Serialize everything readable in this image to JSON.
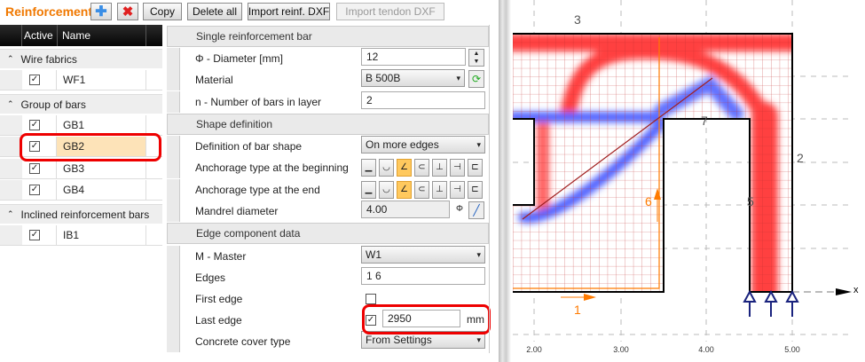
{
  "toolbar": {
    "title": "Reinforcement",
    "add_icon": "plus-icon",
    "delete_icon": "x-icon",
    "copy": "Copy",
    "delete_all": "Delete all",
    "import_reinf": "Import reinf. DXF",
    "import_tendon": "Import tendon DXF"
  },
  "list": {
    "col_active": "Active",
    "col_name": "Name",
    "groups": [
      {
        "label": "Wire fabrics",
        "items": [
          {
            "name": "WF1",
            "active": true
          }
        ]
      },
      {
        "label": "Group of bars",
        "items": [
          {
            "name": "GB1",
            "active": true
          },
          {
            "name": "GB2",
            "active": true,
            "selected": true
          },
          {
            "name": "GB3",
            "active": true
          },
          {
            "name": "GB4",
            "active": true
          }
        ]
      },
      {
        "label": "Inclined reinforcement bars",
        "items": [
          {
            "name": "IB1",
            "active": true
          }
        ]
      }
    ]
  },
  "props": {
    "single": {
      "header": "Single reinforcement bar",
      "diameter_label": "Φ - Diameter [mm]",
      "diameter": "12",
      "material_label": "Material",
      "material": "B 500B",
      "nbars_label": "n - Number of bars in layer",
      "nbars": "2"
    },
    "shape": {
      "header": "Shape definition",
      "def_label": "Definition of bar shape",
      "def": "On more edges",
      "anch_begin_label": "Anchorage type at the beginning",
      "anch_end_label": "Anchorage type at the end",
      "anchor_options": [
        "straight",
        "bend-90",
        "hook-135",
        "hook-180",
        "plate-down",
        "plate-end",
        "loop-end"
      ],
      "anch_begin_selected": 2,
      "anch_end_selected": 2,
      "mandrel_label": "Mandrel diameter",
      "mandrel": "4.00",
      "mandrel_unit": "Φ"
    },
    "edge": {
      "header": "Edge component data",
      "master_label": "M - Master",
      "master": "W1",
      "edges_label": "Edges",
      "edges": "1 6",
      "first_label": "First edge",
      "first_checked": false,
      "last_label": "Last edge",
      "last_checked": true,
      "last_value": "2950",
      "last_unit": "mm",
      "cover_label": "Concrete cover type",
      "cover": "From Settings"
    }
  },
  "canvas": {
    "edge_labels": [
      "1",
      "2",
      "3",
      "5",
      "6",
      "7"
    ],
    "axis_ticks": [
      "2.00",
      "3.00",
      "4.00",
      "5.00"
    ],
    "axis_name": "x",
    "colors": {
      "tension": "#ff4040",
      "compression": "#5060ff",
      "selection": "#ff7a00",
      "highlight": "#e00000"
    }
  }
}
